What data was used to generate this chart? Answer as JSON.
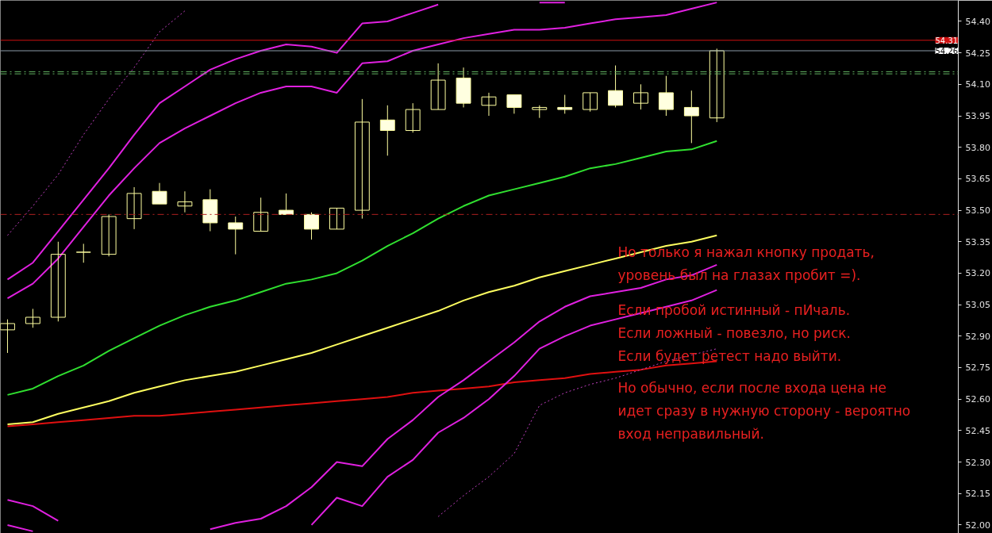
{
  "chart_data": {
    "type": "candlestick",
    "categories": [
      null,
      null,
      null,
      null,
      null,
      null,
      null,
      null,
      null,
      null,
      null,
      null,
      null,
      null,
      null,
      null,
      null,
      null,
      null,
      null,
      null,
      null,
      null,
      null,
      null,
      null,
      null,
      null,
      null
    ],
    "ohlc": [
      [
        52.93,
        52.98,
        52.82,
        52.96
      ],
      [
        52.96,
        53.03,
        52.94,
        52.99
      ],
      [
        52.99,
        53.35,
        52.97,
        53.29
      ],
      [
        53.3,
        53.34,
        53.25,
        53.3
      ],
      [
        53.29,
        53.48,
        53.28,
        53.47
      ],
      [
        53.46,
        53.61,
        53.41,
        53.58
      ],
      [
        53.59,
        53.63,
        53.53,
        53.53
      ],
      [
        53.52,
        53.59,
        53.49,
        53.54
      ],
      [
        53.55,
        53.6,
        53.4,
        53.44
      ],
      [
        53.44,
        53.47,
        53.29,
        53.41
      ],
      [
        53.4,
        53.56,
        53.4,
        53.49
      ],
      [
        53.5,
        53.58,
        53.48,
        53.48
      ],
      [
        53.48,
        53.49,
        53.36,
        53.41
      ],
      [
        53.41,
        53.51,
        53.41,
        53.51
      ],
      [
        53.5,
        54.03,
        53.46,
        53.92
      ],
      [
        53.93,
        54.0,
        53.76,
        53.88
      ],
      [
        53.88,
        54.01,
        53.87,
        53.98
      ],
      [
        53.98,
        54.2,
        53.98,
        54.12
      ],
      [
        54.13,
        54.18,
        53.99,
        54.01
      ],
      [
        54.0,
        54.06,
        53.95,
        54.04
      ],
      [
        54.05,
        54.05,
        53.96,
        53.99
      ],
      [
        53.98,
        54.0,
        53.94,
        53.99
      ],
      [
        53.99,
        54.05,
        53.96,
        53.98
      ],
      [
        53.98,
        54.06,
        53.97,
        54.06
      ],
      [
        54.07,
        54.19,
        53.99,
        54.0
      ],
      [
        54.01,
        54.1,
        53.98,
        54.06
      ],
      [
        54.06,
        54.14,
        53.95,
        53.98
      ],
      [
        53.99,
        54.07,
        53.82,
        53.95
      ],
      [
        53.94,
        54.27,
        53.92,
        54.26
      ]
    ],
    "color": "#ffffa0",
    "series": [
      {
        "type": "line",
        "color": "#e020e0",
        "line_style": "solid",
        "values": [
          53.17,
          53.25,
          53.4,
          53.55,
          53.7,
          53.86,
          54.01,
          54.09,
          54.17,
          54.22,
          54.26,
          54.29,
          54.28,
          54.25,
          54.39,
          54.4,
          54.44,
          54.48,
          null,
          null,
          null,
          54.49,
          54.49,
          null,
          null,
          null,
          null,
          null,
          null
        ]
      },
      {
        "type": "line",
        "color": "#e020e0",
        "line_style": "solid",
        "values": [
          53.08,
          53.15,
          53.27,
          53.42,
          53.57,
          53.7,
          53.82,
          53.89,
          53.95,
          54.01,
          54.06,
          54.09,
          54.09,
          54.06,
          54.2,
          54.21,
          54.26,
          54.29,
          54.32,
          54.34,
          54.36,
          54.36,
          54.37,
          54.39,
          54.41,
          54.42,
          54.43,
          54.46,
          54.49
        ]
      },
      {
        "type": "line",
        "color": "#c040c0",
        "line_style": "dotted",
        "values": [
          53.38,
          53.52,
          53.67,
          53.86,
          54.03,
          54.18,
          54.35,
          54.45,
          null,
          null,
          null,
          null,
          null,
          null,
          null,
          null,
          null,
          null,
          null,
          null,
          null,
          null,
          null,
          null,
          null,
          null,
          null,
          null,
          null
        ]
      },
      {
        "type": "line",
        "color": "#30e030",
        "line_style": "solid",
        "values": [
          52.62,
          52.65,
          52.71,
          52.76,
          52.83,
          52.89,
          52.95,
          53.0,
          53.04,
          53.07,
          53.11,
          53.15,
          53.17,
          53.2,
          53.26,
          53.33,
          53.39,
          53.46,
          53.52,
          53.57,
          53.6,
          53.63,
          53.66,
          53.7,
          53.72,
          53.75,
          53.78,
          53.79,
          53.83
        ]
      },
      {
        "type": "line",
        "color": "#ffff60",
        "line_style": "solid",
        "values": [
          52.48,
          52.49,
          52.53,
          52.56,
          52.59,
          52.63,
          52.66,
          52.69,
          52.71,
          52.73,
          52.76,
          52.79,
          52.82,
          52.86,
          52.9,
          52.94,
          52.98,
          53.02,
          53.07,
          53.11,
          53.14,
          53.18,
          53.21,
          53.24,
          53.27,
          53.3,
          53.33,
          53.35,
          53.38
        ]
      },
      {
        "type": "line",
        "color": "#e01010",
        "line_style": "solid",
        "values": [
          52.47,
          52.48,
          52.49,
          52.5,
          52.51,
          52.52,
          52.52,
          52.53,
          52.54,
          52.55,
          52.56,
          52.57,
          52.58,
          52.59,
          52.6,
          52.61,
          52.63,
          52.64,
          52.65,
          52.66,
          52.68,
          52.69,
          52.7,
          52.72,
          52.73,
          52.74,
          52.76,
          52.77,
          52.78
        ]
      },
      {
        "type": "line",
        "color": "#e020e0",
        "line_style": "solid",
        "values": [
          52.12,
          52.09,
          52.02,
          null,
          null,
          null,
          null,
          null,
          51.98,
          52.01,
          52.03,
          52.09,
          52.18,
          52.3,
          52.28,
          52.41,
          52.5,
          52.61,
          52.69,
          52.78,
          52.87,
          52.97,
          53.04,
          53.09,
          53.11,
          53.13,
          53.17,
          53.19,
          53.24
        ]
      },
      {
        "type": "line",
        "color": "#e020e0",
        "line_style": "solid",
        "values": [
          52.0,
          51.97,
          null,
          null,
          null,
          null,
          null,
          null,
          null,
          null,
          null,
          null,
          52.0,
          52.13,
          52.09,
          52.23,
          52.31,
          52.44,
          52.51,
          52.6,
          52.71,
          52.84,
          52.9,
          52.95,
          52.98,
          53.01,
          53.04,
          53.07,
          53.12
        ]
      },
      {
        "type": "line",
        "color": "#c040c0",
        "line_style": "dotted",
        "values": [
          null,
          null,
          null,
          null,
          null,
          null,
          null,
          null,
          null,
          null,
          null,
          null,
          null,
          null,
          null,
          null,
          null,
          52.04,
          52.14,
          52.23,
          52.34,
          52.57,
          52.63,
          52.67,
          52.7,
          52.74,
          52.78,
          52.81,
          52.84
        ]
      }
    ],
    "ylim": [
      51.96,
      54.5
    ],
    "yticks": [
      {
        "value": 52.0,
        "label": "52.00"
      },
      {
        "value": 52.15,
        "label": "52.15"
      },
      {
        "value": 52.3,
        "label": "52.30"
      },
      {
        "value": 52.45,
        "label": "52.45"
      },
      {
        "value": 52.6,
        "label": "52.60"
      },
      {
        "value": 52.75,
        "label": "52.75"
      },
      {
        "value": 52.9,
        "label": "52.90"
      },
      {
        "value": 53.05,
        "label": "53.05"
      },
      {
        "value": 53.2,
        "label": "53.20"
      },
      {
        "value": 53.35,
        "label": "53.35"
      },
      {
        "value": 53.5,
        "label": "53.50"
      },
      {
        "value": 53.65,
        "label": "53.65"
      },
      {
        "value": 53.8,
        "label": "53.80"
      },
      {
        "value": 53.95,
        "label": "53.95"
      },
      {
        "value": 54.1,
        "label": "54.10"
      },
      {
        "value": 54.25,
        "label": "54.25"
      },
      {
        "value": 54.4,
        "label": "54.40"
      }
    ],
    "ref_lines": [
      {
        "axis": "y",
        "value": 54.31,
        "label": "54.31",
        "color": "#d01010",
        "line_style": "solid"
      },
      {
        "axis": "y",
        "value": 54.26,
        "label": "54.26",
        "color": "#8a9aa8",
        "line_style": "solid"
      },
      {
        "axis": "y",
        "value": 54.16,
        "color": "#60b060",
        "line_style": "dashed"
      },
      {
        "axis": "y",
        "value": 54.15,
        "color": "#60b060",
        "line_style": "dashed"
      },
      {
        "axis": "y",
        "value": 53.48,
        "color": "#b02020",
        "line_style": "dashed"
      }
    ],
    "annotations": [
      "Но только я нажал кнопку продать,\nуровень был на глазах пробит =).",
      "Если пробой истинный - пИчаль.\nЕсли ложный - повезло, но риск.\nЕсли будет ретест надо выйти.",
      "Но обычно, если после входа цена не\nидет сразу в нужную сторону - вероятно\nвход неправильный."
    ],
    "grid": false,
    "marker": "none",
    "tick_labels": "y"
  }
}
